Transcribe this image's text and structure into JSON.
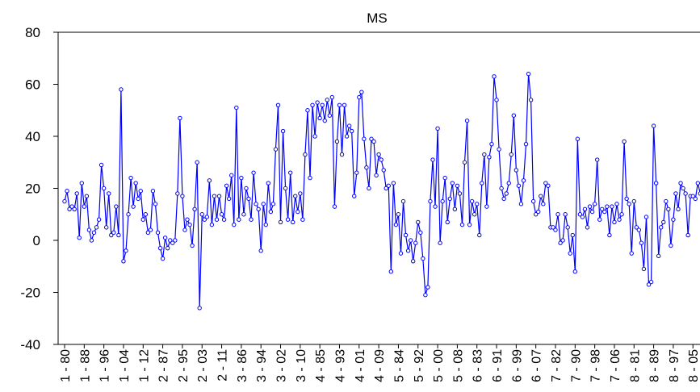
{
  "chart_data": {
    "type": "line",
    "title": "MS",
    "categories": [
      "1 - 80",
      null,
      null,
      null,
      null,
      null,
      null,
      null,
      "1 - 88",
      null,
      null,
      null,
      null,
      null,
      null,
      null,
      "1 - 96",
      null,
      null,
      null,
      null,
      null,
      null,
      null,
      "1 - 04",
      null,
      null,
      null,
      null,
      null,
      null,
      null,
      "1 - 12",
      null,
      null,
      null,
      null,
      null,
      null,
      null,
      "2 - 87",
      null,
      null,
      null,
      null,
      null,
      null,
      null,
      "2 - 95",
      null,
      null,
      null,
      null,
      null,
      null,
      null,
      "2 - 03",
      null,
      null,
      null,
      null,
      null,
      null,
      null,
      "2 - 11",
      null,
      null,
      null,
      null,
      null,
      null,
      null,
      "3 - 86",
      null,
      null,
      null,
      null,
      null,
      null,
      null,
      "3 - 94",
      null,
      null,
      null,
      null,
      null,
      null,
      null,
      "3 - 02",
      null,
      null,
      null,
      null,
      null,
      null,
      null,
      "3 - 10",
      null,
      null,
      null,
      null,
      null,
      null,
      null,
      "4 - 85",
      null,
      null,
      null,
      null,
      null,
      null,
      null,
      "4 - 93",
      null,
      null,
      null,
      null,
      null,
      null,
      null,
      "4 - 01",
      null,
      null,
      null,
      null,
      null,
      null,
      null,
      "4 - 09",
      null,
      null,
      null,
      null,
      null,
      null,
      null,
      "5 - 84",
      null,
      null,
      null,
      null,
      null,
      null,
      null,
      "5 - 92",
      null,
      null,
      null,
      null,
      null,
      null,
      null,
      "5 - 00",
      null,
      null,
      null,
      null,
      null,
      null,
      null,
      "5 - 08",
      null,
      null,
      null,
      null,
      null,
      null,
      null,
      "6 - 83",
      null,
      null,
      null,
      null,
      null,
      null,
      null,
      "6 - 91",
      null,
      null,
      null,
      null,
      null,
      null,
      null,
      "6 - 99",
      null,
      null,
      null,
      null,
      null,
      null,
      null,
      "6 - 07",
      null,
      null,
      null,
      null,
      null,
      null,
      null,
      "7 - 82",
      null,
      null,
      null,
      null,
      null,
      null,
      null,
      "7 - 90",
      null,
      null,
      null,
      null,
      null,
      null,
      null,
      "7 - 98",
      null,
      null,
      null,
      null,
      null,
      null,
      null,
      "7 - 06",
      null,
      null,
      null,
      null,
      null,
      null,
      null,
      "8 - 81",
      null,
      null,
      null,
      null,
      null,
      null,
      null,
      "8 - 89",
      null,
      null,
      null,
      null,
      null,
      null,
      null,
      "8 - 97",
      null,
      null,
      null,
      null,
      null,
      null,
      null,
      "8 - 05",
      null,
      null,
      null
    ],
    "series": [
      {
        "color": "#0000ff",
        "values": [
          15,
          19,
          12,
          13,
          12,
          18,
          1,
          22,
          13,
          17,
          4,
          0,
          3,
          5,
          8,
          29,
          20,
          5,
          18,
          2,
          3,
          13,
          2,
          58,
          -8,
          -4,
          10,
          24,
          13,
          22,
          16,
          19,
          8,
          10,
          3,
          4,
          19,
          14,
          3,
          -3,
          -7,
          1,
          -3,
          0,
          -1,
          0,
          18,
          47,
          17,
          4,
          8,
          6,
          -2,
          12,
          30,
          -26,
          10,
          8,
          9,
          23,
          6,
          17,
          8,
          17,
          10,
          8,
          21,
          16,
          25,
          6,
          51,
          8,
          24,
          10,
          20,
          16,
          8,
          26,
          14,
          12,
          -4,
          14,
          6,
          22,
          11,
          14,
          35,
          52,
          7,
          42,
          20,
          8,
          26,
          7,
          17,
          11,
          18,
          8,
          33,
          50,
          24,
          52,
          40,
          53,
          47,
          52,
          46,
          54,
          48,
          55,
          13,
          38,
          52,
          33,
          52,
          40,
          44,
          42,
          17,
          26,
          55,
          57,
          39,
          28,
          20,
          39,
          38,
          25,
          33,
          31,
          27,
          20,
          21,
          -12,
          22,
          6,
          10,
          -5,
          15,
          2,
          -4,
          0,
          -8,
          -1,
          7,
          3,
          -7,
          -21,
          -18,
          15,
          31,
          13,
          43,
          -1,
          15,
          24,
          7,
          16,
          22,
          12,
          21,
          18,
          6,
          30,
          46,
          6,
          15,
          10,
          14,
          2,
          22,
          33,
          13,
          32,
          37,
          63,
          54,
          35,
          20,
          16,
          18,
          22,
          33,
          48,
          27,
          21,
          14,
          23,
          37,
          64,
          54,
          15,
          10,
          11,
          17,
          14,
          22,
          21,
          5,
          5,
          4,
          10,
          -1,
          0,
          10,
          5,
          -5,
          2,
          -12,
          39,
          10,
          9,
          12,
          5,
          13,
          11,
          14,
          31,
          8,
          12,
          11,
          13,
          2,
          13,
          7,
          14,
          8,
          10,
          38,
          16,
          14,
          -5,
          15,
          5,
          4,
          -1,
          -11,
          9,
          -17,
          -16,
          44,
          22,
          -6,
          5,
          7,
          15,
          12,
          -2,
          8,
          18,
          12,
          22,
          20,
          18,
          2,
          17,
          17,
          16,
          22,
          18
        ]
      }
    ],
    "ylim": [
      -40,
      80
    ],
    "yticks": [
      -40,
      -20,
      0,
      20,
      40,
      60,
      80
    ]
  }
}
